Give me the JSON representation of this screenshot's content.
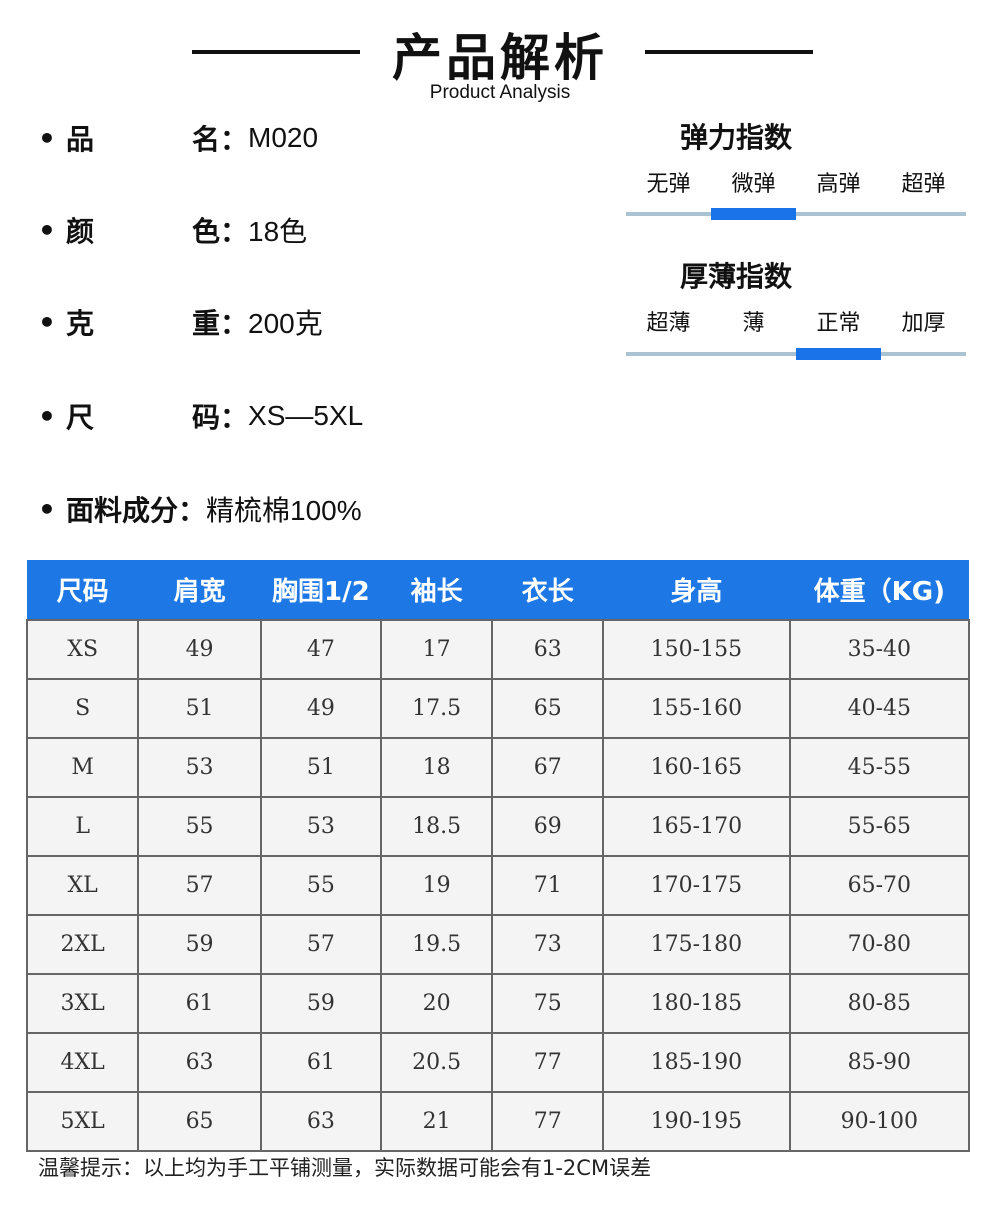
{
  "header": {
    "title": "产品解析",
    "subtitle": "Product Analysis"
  },
  "specs": [
    {
      "label": [
        "品",
        "名"
      ],
      "value": "M020"
    },
    {
      "label": [
        "颜",
        "色"
      ],
      "value": "18色"
    },
    {
      "label": [
        "克",
        "重"
      ],
      "value": "200克"
    },
    {
      "label": [
        "尺",
        "码"
      ],
      "value": "XS—5XL"
    },
    {
      "label": [
        "面料成分"
      ],
      "value": "精梳棉100%"
    }
  ],
  "colon": "：",
  "bullet": "•",
  "elasticity": {
    "title": "弹力指数",
    "options": [
      "无弹",
      "微弹",
      "高弹",
      "超弹"
    ],
    "selected_index": 1
  },
  "thickness": {
    "title": "厚薄指数",
    "options": [
      "超薄",
      "薄",
      "正常",
      "加厚"
    ],
    "selected_index": 2
  },
  "colors": {
    "accent": "#1d78e6",
    "track": "#a9c3d3"
  },
  "size_table": {
    "headers": [
      "尺码",
      "肩宽",
      "胸围1/2",
      "袖长",
      "衣长",
      "身高",
      "体重（KG)"
    ],
    "rows": [
      [
        "XS",
        "49",
        "47",
        "17",
        "63",
        "150-155",
        "35-40"
      ],
      [
        "S",
        "51",
        "49",
        "17.5",
        "65",
        "155-160",
        "40-45"
      ],
      [
        "M",
        "53",
        "51",
        "18",
        "67",
        "160-165",
        "45-55"
      ],
      [
        "L",
        "55",
        "53",
        "18.5",
        "69",
        "165-170",
        "55-65"
      ],
      [
        "XL",
        "57",
        "55",
        "19",
        "71",
        "170-175",
        "65-70"
      ],
      [
        "2XL",
        "59",
        "57",
        "19.5",
        "73",
        "175-180",
        "70-80"
      ],
      [
        "3XL",
        "61",
        "59",
        "20",
        "75",
        "180-185",
        "80-85"
      ],
      [
        "4XL",
        "63",
        "61",
        "20.5",
        "77",
        "185-190",
        "85-90"
      ],
      [
        "5XL",
        "65",
        "63",
        "21",
        "77",
        "190-195",
        "90-100"
      ]
    ]
  },
  "note": "温馨提示：以上均为手工平铺测量，实际数据可能会有1-2CM误差"
}
